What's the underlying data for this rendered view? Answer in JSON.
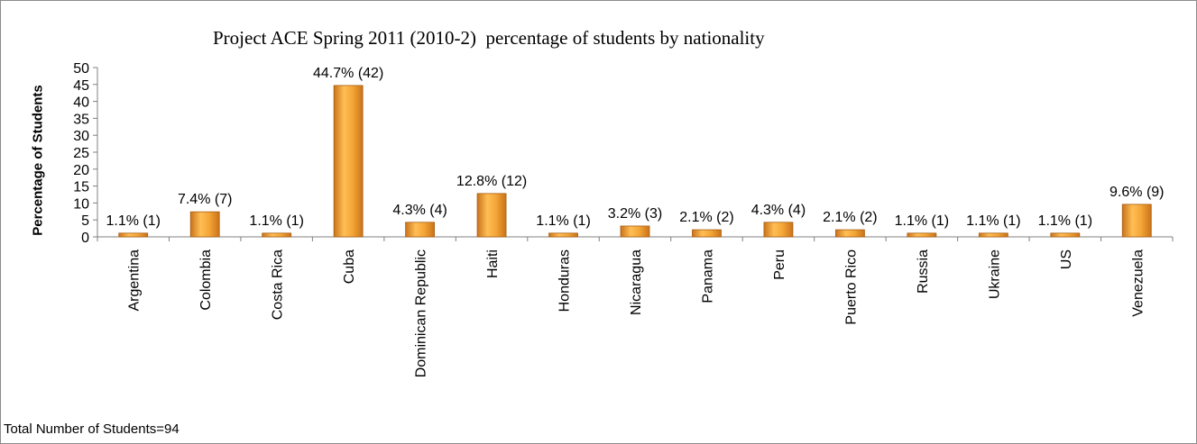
{
  "chart_data": {
    "type": "bar",
    "title": "Project ACE Spring 2011 (2010-2)  percentage of students by nationality",
    "ylabel": "Percentage of Students",
    "xlabel": "",
    "ylim": [
      0,
      50
    ],
    "yticks": [
      0,
      5,
      10,
      15,
      20,
      25,
      30,
      35,
      40,
      45,
      50
    ],
    "categories": [
      "Argentina",
      "Colombia",
      "Costa Rica",
      "Cuba",
      "Dominican Republic",
      "Haiti",
      "Honduras",
      "Nicaragua",
      "Panama",
      "Peru",
      "Puerto Rico",
      "Russia",
      "Ukraine",
      "US",
      "Venezuela"
    ],
    "values": [
      1.1,
      7.4,
      1.1,
      44.7,
      4.3,
      12.8,
      1.1,
      3.2,
      2.1,
      4.3,
      2.1,
      1.1,
      1.1,
      1.1,
      9.6
    ],
    "data_labels": [
      "1.1% (1)",
      "7.4% (7)",
      "1.1% (1)",
      "44.7% (42)",
      "4.3% (4)",
      "12.8% (12)",
      "1.1% (1)",
      "3.2% (3)",
      "2.1% (2)",
      "4.3% (4)",
      "2.1% (2)",
      "1.1% (1)",
      "1.1% (1)",
      "1.1% (1)",
      "9.6% (9)"
    ],
    "grid": false,
    "legend": "none",
    "bar_color": "#f0a030"
  },
  "footnote": "Total Number of Students=94"
}
